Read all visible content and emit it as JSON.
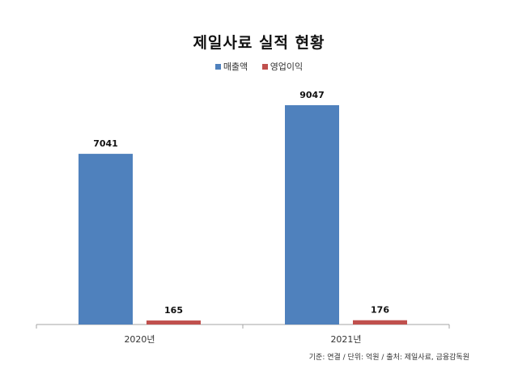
{
  "chart_data": {
    "type": "bar",
    "title": "제일사료 실적 현황",
    "categories": [
      "2020년",
      "2021년"
    ],
    "series": [
      {
        "name": "매출액",
        "values": [
          7041,
          9047
        ],
        "color": "#4F81BD"
      },
      {
        "name": "영업이익",
        "values": [
          165,
          176
        ],
        "color": "#C0504D"
      }
    ],
    "ylim": [
      0,
      10000
    ],
    "grid": false,
    "legend_position": "top",
    "xlabel": "",
    "ylabel": ""
  },
  "footnote": "기준: 연결 / 단위: 억원 / 출처: 제일사료, 금융감독원"
}
